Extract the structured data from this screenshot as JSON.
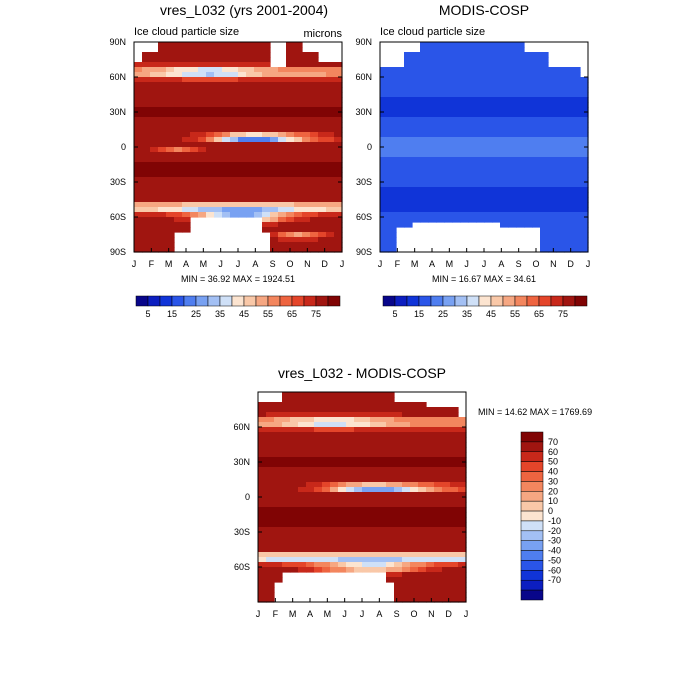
{
  "palette": [
    "#08068a",
    "#0c1ec0",
    "#1034d8",
    "#2a55e8",
    "#4f7ef0",
    "#78a1f2",
    "#a3c0f4",
    "#cfe0f7",
    "#fce4d0",
    "#f9c8a8",
    "#f6a782",
    "#f3865e",
    "#ee6440",
    "#e4452a",
    "#c8281a",
    "#a01510",
    "#800404"
  ],
  "months": [
    "J",
    "F",
    "M",
    "A",
    "M",
    "J",
    "J",
    "A",
    "S",
    "O",
    "N",
    "D",
    "J"
  ],
  "lat_ticks_full": [
    "90N",
    "60N",
    "30N",
    "0",
    "30S",
    "60S",
    "90S"
  ],
  "lat_ticks_diff": [
    "60N",
    "30N",
    "0",
    "30S",
    "60S"
  ],
  "chart_data": [
    {
      "type": "heatmap",
      "title": "vres_L032 (yrs 2001-2004)",
      "left_label": "Ice cloud particle size",
      "right_label": "microns",
      "stats": "MIN =  36.92 MAX = 1924.51",
      "colorbar_ticks": [
        "5",
        "15",
        "25",
        "35",
        "45",
        "55",
        "65",
        "75"
      ],
      "field": "model",
      "xlim": [
        "J",
        "J"
      ],
      "ylim": [
        "90S",
        "90N"
      ]
    },
    {
      "type": "heatmap",
      "title": "MODIS-COSP",
      "left_label": "Ice cloud particle size",
      "stats": "MIN =  16.67 MAX =  34.61",
      "colorbar_ticks": [
        "5",
        "15",
        "25",
        "35",
        "45",
        "55",
        "65",
        "75"
      ],
      "field": "obs",
      "xlim": [
        "J",
        "J"
      ],
      "ylim": [
        "90S",
        "90N"
      ]
    },
    {
      "type": "heatmap",
      "title": "vres_L032 - MODIS-COSP",
      "stats": "MIN =  14.62 MAX = 1769.69",
      "colorbar_ticks": [
        "70",
        "60",
        "50",
        "40",
        "30",
        "20",
        "10",
        "0",
        "-10",
        "-20",
        "-30",
        "-40",
        "-50",
        "-60",
        "-70"
      ],
      "field": "diff"
    }
  ]
}
